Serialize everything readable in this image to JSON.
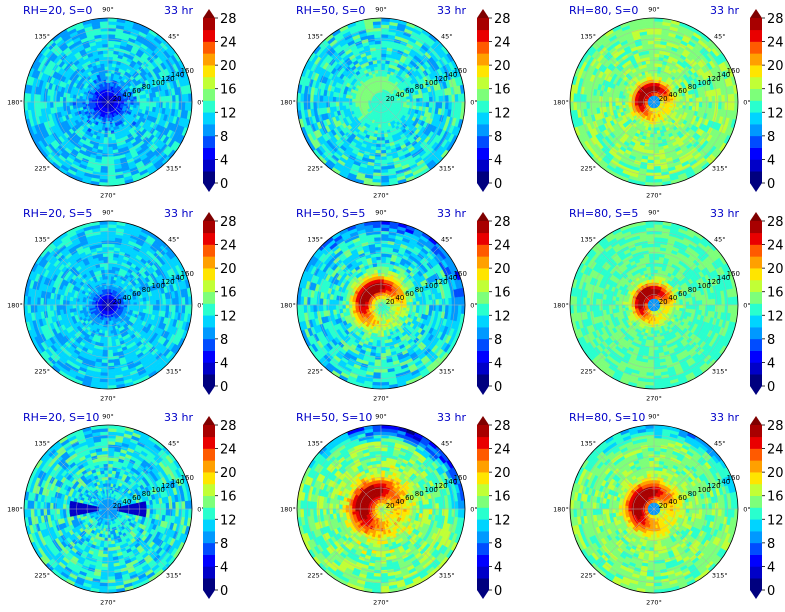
{
  "colors": {
    "title": "#0000c8",
    "colormap": [
      "#00007f",
      "#0000c8",
      "#0000ff",
      "#004cff",
      "#0099ff",
      "#00d4ff",
      "#29ffce",
      "#7dff7a",
      "#c1ff36",
      "#ffe500",
      "#ffa000",
      "#ff5a00",
      "#e90000",
      "#a80000"
    ]
  },
  "chart_data": {
    "type": "polar-contour",
    "time_label": "33 hr",
    "angle_labels": [
      "90°",
      "45°",
      "0°",
      "315°",
      "270°",
      "225°",
      "180°",
      "135°"
    ],
    "radial_ticks": [
      "20",
      "40",
      "60",
      "80",
      "100",
      "120",
      "140",
      "160"
    ],
    "colorbar_ticks": [
      "0",
      "4",
      "8",
      "12",
      "16",
      "20",
      "24",
      "28"
    ],
    "colorbar_range": [
      0,
      28
    ],
    "panels": [
      {
        "label": "RH=20, S=0",
        "center_value": 3,
        "core_radius": 0.22,
        "ring_value": 0,
        "ring_radius": 0,
        "ring_width": 0,
        "background": 11,
        "noise": 3,
        "edge_low": 0,
        "eye": 0
      },
      {
        "label": "RH=50, S=0",
        "center_value": 12,
        "core_radius": 0.3,
        "ring_value": 15,
        "ring_radius": 0.22,
        "ring_width": 0.12,
        "background": 12,
        "noise": 3,
        "edge_low": 0,
        "eye": 0
      },
      {
        "label": "RH=80, S=0",
        "center_value": 11,
        "core_radius": 0.05,
        "ring_value": 27,
        "ring_radius": 0.16,
        "ring_width": 0.1,
        "background": 15,
        "noise": 2,
        "edge_low": 0,
        "eye": 1
      },
      {
        "label": "RH=20, S=5",
        "center_value": 3,
        "core_radius": 0.18,
        "ring_value": 0,
        "ring_radius": 0,
        "ring_width": 0,
        "background": 11,
        "noise": 2,
        "edge_low": 0,
        "eye": 0
      },
      {
        "label": "RH=50, S=5",
        "center_value": 12,
        "core_radius": 0.08,
        "ring_value": 26,
        "ring_radius": 0.22,
        "ring_width": 0.14,
        "background": 12,
        "noise": 3,
        "edge_low": 1,
        "eye": 0
      },
      {
        "label": "RH=80, S=5",
        "center_value": 11,
        "core_radius": 0.05,
        "ring_value": 27,
        "ring_radius": 0.16,
        "ring_width": 0.11,
        "background": 14,
        "noise": 2,
        "edge_low": 0,
        "eye": 1
      },
      {
        "label": "RH=20, S=10",
        "center_value": 8,
        "core_radius": 0.15,
        "ring_value": 0,
        "ring_radius": 0,
        "ring_width": 0,
        "background": 12,
        "noise": 3,
        "edge_low": 0,
        "eye": 0
      },
      {
        "label": "RH=50, S=10",
        "center_value": 14,
        "core_radius": 0.06,
        "ring_value": 27,
        "ring_radius": 0.22,
        "ring_width": 0.16,
        "background": 15,
        "noise": 3,
        "edge_low": 2,
        "eye": 0
      },
      {
        "label": "RH=80, S=10",
        "center_value": 9,
        "core_radius": 0.05,
        "ring_value": 27,
        "ring_radius": 0.2,
        "ring_width": 0.14,
        "background": 15,
        "noise": 2,
        "edge_low": 1,
        "eye": 1
      }
    ]
  }
}
